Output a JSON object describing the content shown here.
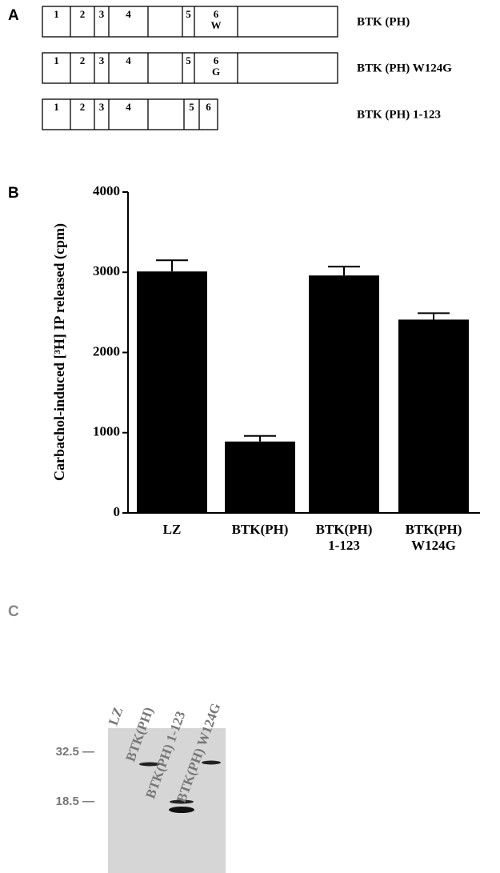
{
  "panel_a": {
    "label": "A",
    "constructs": [
      {
        "name": "BTK (PH)",
        "segments": [
          "1",
          "2",
          "3",
          "4",
          "5",
          "6"
        ],
        "residue": "W"
      },
      {
        "name": "BTK (PH) W124G",
        "segments": [
          "1",
          "2",
          "3",
          "4",
          "5",
          "6"
        ],
        "residue": "G"
      },
      {
        "name": "BTK (PH) 1-123",
        "segments": [
          "1",
          "2",
          "3",
          "4",
          "5",
          "6"
        ]
      }
    ]
  },
  "chart_data": {
    "type": "bar",
    "panel_label": "B",
    "y_label": "Carbachol-induced [³H] IP released (cpm)",
    "categories": [
      "LZ",
      "BTK(PH)",
      "BTK(PH)\n1-123",
      "BTK(PH)\nW124G"
    ],
    "values": [
      3010,
      890,
      2960,
      2410
    ],
    "errors": [
      140,
      70,
      110,
      80
    ],
    "color": "#000000",
    "ylim": [
      0,
      4000
    ],
    "yticks": [
      0,
      1000,
      2000,
      3000,
      4000
    ]
  },
  "panel_c": {
    "label": "C",
    "lanes": [
      "LZ",
      "BTK(PH)",
      "BTK(PH) 1-123",
      "BTK(PH) W124G"
    ],
    "markers": [
      "32.5 —",
      "18.5 —"
    ]
  }
}
